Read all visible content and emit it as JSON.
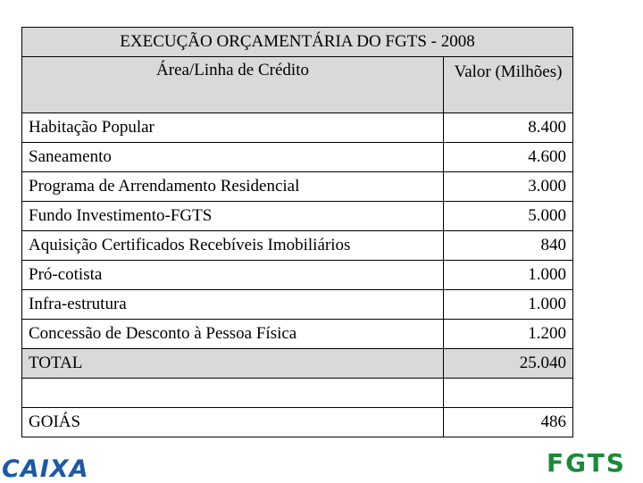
{
  "table": {
    "title": "EXECUÇÃO ORÇAMENTÁRIA DO FGTS  - 2008",
    "header": [
      "Área/Linha de Crédito",
      "Valor (Milhões)"
    ],
    "rows": [
      [
        "Habitação Popular",
        "8.400"
      ],
      [
        "Saneamento",
        "4.600"
      ],
      [
        "Programa de Arrendamento Residencial",
        "3.000"
      ],
      [
        "Fundo Investimento-FGTS",
        "5.000"
      ],
      [
        "Aquisição Certificados Recebíveis Imobiliários",
        "840"
      ],
      [
        "Pró-cotista",
        "1.000"
      ],
      [
        "Infra-estrutura",
        "1.000"
      ],
      [
        "Concessão de Desconto à Pessoa Física",
        "1.200"
      ]
    ],
    "total": [
      "TOTAL",
      "25.040"
    ],
    "region": [
      "GOIÁS",
      "486"
    ]
  },
  "logos": {
    "left": "CAIXA",
    "right": "FGTS"
  }
}
